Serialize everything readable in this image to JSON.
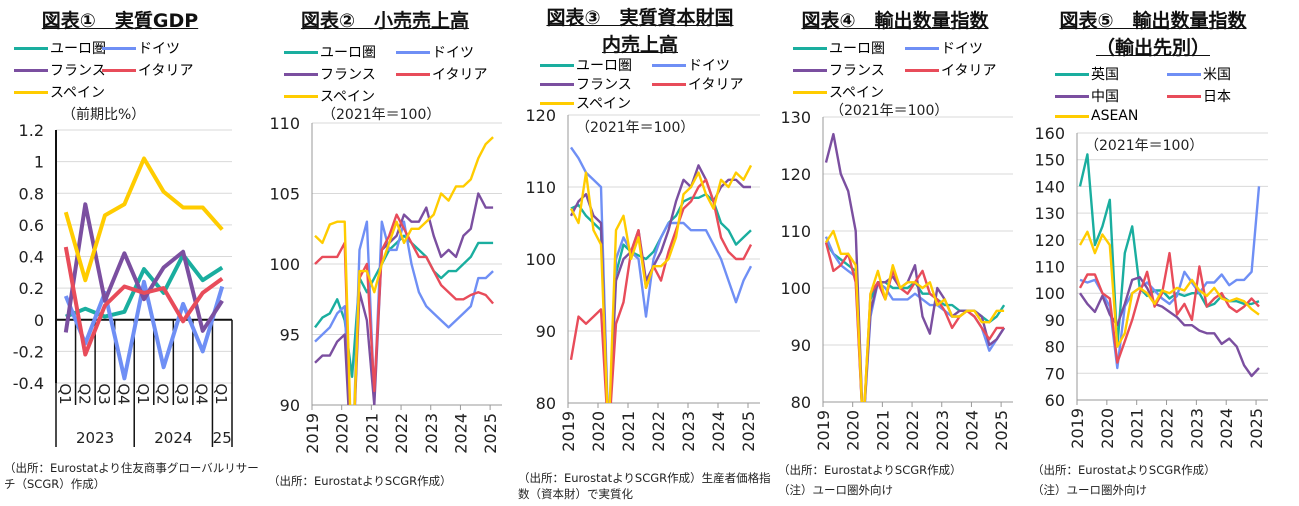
{
  "colors": {
    "euro": "#1aae9f",
    "germany": "#6f8ff5",
    "france": "#7b4fa0",
    "italy": "#e84c5a",
    "spain": "#ffcc00"
  },
  "chart_data": [
    {
      "id": "c1",
      "type": "line",
      "title": "図表①　実質GDP",
      "unit": "（前期比%）",
      "categories": [
        "Q1",
        "Q2",
        "Q3",
        "Q4",
        "Q1",
        "Q2",
        "Q3",
        "Q4",
        "Q1"
      ],
      "year_groups": [
        "2023",
        "2024",
        "25"
      ],
      "ylim": [
        -0.4,
        1.2
      ],
      "yticks": [
        "1.2",
        "1",
        "0.8",
        "0.6",
        "0.4",
        "0.2",
        "0",
        "-0.2",
        "-0.4"
      ],
      "series": [
        {
          "name": "ユーロ圏",
          "color": "#1aae9f",
          "values": [
            0.02,
            0.07,
            0.02,
            0.05,
            0.32,
            0.17,
            0.41,
            0.25,
            0.33
          ]
        },
        {
          "name": "ドイツ",
          "color": "#6f8ff5",
          "values": [
            0.15,
            -0.15,
            0.17,
            -0.37,
            0.24,
            -0.3,
            0.1,
            -0.2,
            0.21
          ]
        },
        {
          "name": "フランス",
          "color": "#7b4fa0",
          "values": [
            -0.08,
            0.73,
            0.12,
            0.42,
            0.13,
            0.33,
            0.43,
            -0.07,
            0.12
          ]
        },
        {
          "name": "イタリア",
          "color": "#e84c5a",
          "values": [
            0.46,
            -0.22,
            0.09,
            0.21,
            0.17,
            0.2,
            -0.01,
            0.17,
            0.26
          ]
        },
        {
          "name": "スペイン",
          "color": "#ffcc00",
          "values": [
            0.68,
            0.25,
            0.66,
            0.73,
            1.02,
            0.81,
            0.71,
            0.71,
            0.57
          ]
        }
      ],
      "note": "（出所：Eurostatより住友商事グローバルリサーチ（SCGR）作成）"
    },
    {
      "id": "c2",
      "type": "line",
      "title": "図表②　小売売上高",
      "unit": "（2021年＝100）",
      "ylim": [
        90,
        110
      ],
      "yticks": [
        "110",
        "105",
        "100",
        "95",
        "90"
      ],
      "xticks": [
        "2019",
        "2020",
        "2021",
        "2022",
        "2023",
        "2024",
        "2025"
      ],
      "series": [
        {
          "name": "ユーロ圏",
          "color": "#1aae9f",
          "values": [
            95.5,
            96.2,
            96.5,
            97.5,
            96,
            92,
            99,
            98,
            99,
            100,
            101,
            101.5,
            102,
            101.5,
            101,
            100.5,
            99.5,
            99,
            99.5,
            99.5,
            100,
            100.5,
            101.5,
            101.5,
            101.5
          ]
        },
        {
          "name": "ドイツ",
          "color": "#6f8ff5",
          "values": [
            94.5,
            95,
            95.5,
            96.5,
            97,
            85,
            101,
            103,
            90.5,
            103,
            101,
            101,
            103,
            100,
            98,
            97,
            96.5,
            96,
            95.5,
            96,
            96.5,
            97,
            99,
            99,
            99.5
          ]
        },
        {
          "name": "フランス",
          "color": "#7b4fa0",
          "values": [
            93,
            93.5,
            93.5,
            94.5,
            95,
            85,
            98,
            96,
            90,
            101,
            101.5,
            102,
            103.5,
            103,
            103,
            104,
            102,
            100.5,
            101,
            100.5,
            102,
            102.5,
            105,
            104,
            104
          ]
        },
        {
          "name": "イタリア",
          "color": "#e84c5a",
          "values": [
            100,
            100.5,
            100.5,
            100.5,
            101.5,
            85,
            99,
            100,
            91,
            101,
            102,
            103.5,
            102.5,
            101.5,
            100.5,
            100.5,
            99.5,
            98.5,
            98,
            97.5,
            97.5,
            97.8,
            98,
            97.8,
            97.2
          ]
        },
        {
          "name": "スペイン",
          "color": "#ffcc00",
          "values": [
            102,
            101.5,
            102.8,
            103,
            103,
            85,
            99.5,
            99.5,
            98,
            100,
            101.5,
            103,
            101.5,
            102.5,
            102.5,
            103,
            103.5,
            105,
            104.5,
            105.5,
            105.5,
            106,
            107.5,
            108.5,
            109
          ]
        }
      ],
      "note": "（出所：EurostatよりSCGR作成）"
    },
    {
      "id": "c3",
      "type": "line",
      "title": "図表③　実質資本財国",
      "title2": "内売上高",
      "unit": "（2021年＝100）",
      "ylim": [
        80,
        120
      ],
      "yticks": [
        "120",
        "110",
        "100",
        "90",
        "80"
      ],
      "xticks": [
        "2019",
        "2020",
        "2021",
        "2022",
        "2023",
        "2024",
        "2025"
      ],
      "series": [
        {
          "name": "ユーロ圏",
          "color": "#1aae9f",
          "values": [
            107,
            107.5,
            106,
            105,
            104,
            75,
            98,
            102,
            101,
            100.5,
            100,
            101,
            103,
            105,
            106,
            108,
            108.5,
            108.5,
            109,
            108,
            105,
            104,
            102,
            103,
            104
          ]
        },
        {
          "name": "ドイツ",
          "color": "#6f8ff5",
          "values": [
            115.5,
            114,
            112,
            111,
            110,
            75,
            100,
            103,
            101,
            100,
            92,
            100,
            103,
            105,
            105,
            105,
            104,
            104,
            104,
            102,
            100,
            97,
            94,
            97,
            99
          ]
        },
        {
          "name": "フランス",
          "color": "#7b4fa0",
          "values": [
            106,
            108,
            109,
            106,
            105,
            75,
            97,
            100,
            101,
            104,
            97,
            99,
            101,
            104,
            108,
            111,
            110,
            113,
            111,
            108,
            110,
            111,
            111,
            110,
            110
          ]
        },
        {
          "name": "イタリア",
          "color": "#e84c5a",
          "values": [
            86,
            92,
            91,
            92,
            93,
            75,
            91,
            94,
            101,
            104,
            96,
            99,
            97,
            101,
            104,
            107,
            108,
            110,
            111,
            108,
            103,
            101,
            100,
            100,
            102
          ]
        },
        {
          "name": "スペイン",
          "color": "#ffcc00",
          "values": [
            107,
            105,
            112,
            104,
            102,
            75,
            104,
            106,
            100,
            103,
            96,
            99,
            99,
            100,
            103,
            109,
            110,
            112,
            109,
            107,
            111,
            110,
            112,
            111,
            113
          ]
        }
      ],
      "note": "（出所：EurostatよりSCGR作成）生産者価格指数（資本財）で実質化"
    },
    {
      "id": "c4",
      "type": "line",
      "title": "図表④　輸出数量指数",
      "unit": "（2021年＝100）",
      "ylim": [
        80,
        130
      ],
      "yticks": [
        "130",
        "120",
        "110",
        "100",
        "90",
        "80"
      ],
      "xticks": [
        "2019",
        "2020",
        "2021",
        "2022",
        "2023",
        "2024",
        "2025"
      ],
      "series": [
        {
          "name": "ユーロ圏",
          "color": "#1aae9f",
          "values": [
            108,
            106,
            105,
            104,
            103,
            75,
            98,
            101,
            101,
            100,
            100,
            100,
            101,
            99,
            99,
            98,
            97,
            97,
            96,
            96,
            96,
            95,
            94,
            95,
            97
          ]
        },
        {
          "name": "ドイツ",
          "color": "#6f8ff5",
          "values": [
            109,
            106,
            104,
            103,
            102,
            75,
            95,
            101,
            100,
            98,
            98,
            98,
            99,
            98,
            97,
            97,
            96,
            95,
            95,
            96,
            95,
            93,
            89,
            91,
            93
          ]
        },
        {
          "name": "フランス",
          "color": "#7b4fa0",
          "values": [
            122,
            127,
            120,
            117,
            110,
            75,
            96,
            101,
            101,
            102,
            100,
            101,
            104,
            95,
            92,
            100,
            98,
            95,
            96,
            96,
            96,
            95,
            90,
            91,
            93
          ]
        },
        {
          "name": "イタリア",
          "color": "#e84c5a",
          "values": [
            108,
            103,
            104,
            106,
            101,
            75,
            99,
            101,
            98,
            103,
            100,
            99,
            101,
            103,
            99,
            98,
            96,
            93,
            95,
            96,
            95,
            93,
            91,
            93,
            93
          ]
        },
        {
          "name": "スペイン",
          "color": "#ffcc00",
          "values": [
            108,
            110,
            106,
            106,
            104,
            75,
            99,
            103,
            98,
            104,
            100,
            101,
            101,
            100,
            101,
            97,
            98,
            95,
            95,
            96,
            96,
            94,
            94,
            96,
            96
          ]
        }
      ],
      "note": "（出所：EurostatよりSCGR作成）",
      "note2": "（注）ユーロ圏外向け"
    },
    {
      "id": "c5",
      "type": "line",
      "title": "図表⑤　輸出数量指数",
      "title2": "（輸出先別）",
      "unit": "（2021年＝100）",
      "ylim": [
        60,
        160
      ],
      "yticks": [
        "160",
        "150",
        "140",
        "130",
        "120",
        "110",
        "100",
        "90",
        "80",
        "70",
        "60"
      ],
      "xticks": [
        "2019",
        "2020",
        "2021",
        "2022",
        "2023",
        "2024",
        "2025"
      ],
      "series": [
        {
          "name": "英国",
          "color": "#1aae9f",
          "values": [
            140,
            152,
            118,
            125,
            135,
            80,
            115,
            125,
            102,
            99,
            101,
            101,
            98,
            100,
            99,
            100,
            100,
            95,
            96,
            99,
            97,
            97,
            96,
            96,
            97
          ]
        },
        {
          "name": "米国",
          "color": "#6f8ff5",
          "values": [
            105,
            104,
            105,
            100,
            95,
            72,
            95,
            100,
            102,
            104,
            101,
            98,
            96,
            99,
            108,
            104,
            100,
            104,
            104,
            107,
            103,
            105,
            105,
            108,
            140
          ]
        },
        {
          "name": "中国",
          "color": "#7b4fa0",
          "values": [
            100,
            96,
            93,
            99,
            92,
            88,
            96,
            105,
            106,
            102,
            96,
            95,
            93,
            91,
            88,
            88,
            86,
            85,
            85,
            81,
            83,
            80,
            73,
            69,
            72
          ]
        },
        {
          "name": "日本",
          "color": "#e84c5a",
          "values": [
            102,
            107,
            107,
            100,
            98,
            74,
            82,
            90,
            100,
            108,
            95,
            100,
            115,
            92,
            96,
            90,
            110,
            95,
            98,
            100,
            95,
            93,
            95,
            98,
            95
          ]
        },
        {
          "name": "ASEAN",
          "color": "#ffcc00",
          "values": [
            118,
            123,
            115,
            122,
            118,
            80,
            85,
            100,
            102,
            100,
            96,
            101,
            100,
            102,
            101,
            105,
            101,
            99,
            102,
            98,
            97,
            98,
            97,
            94,
            92
          ]
        }
      ],
      "note": "（出所：EurostatよりSCGR作成）",
      "note2": "（注）ユーロ圏外向け"
    }
  ]
}
